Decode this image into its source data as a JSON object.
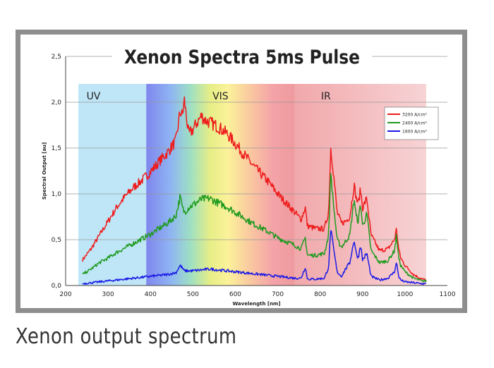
{
  "chart_data": {
    "type": "line",
    "title": "Xenon Spectra 5ms Pulse",
    "xlabel": "Wavelength [nm]",
    "ylabel": "Spectral Output [au]",
    "xlim": [
      200,
      1100
    ],
    "ylim": [
      0,
      2.5
    ],
    "x_ticks": [
      "200",
      "300",
      "400",
      "500",
      "600",
      "700",
      "800",
      "900",
      "1000",
      "1100"
    ],
    "y_ticks": [
      "0,0",
      "0,5",
      "1,0",
      "1,5",
      "2,0",
      "2,5"
    ],
    "bands": [
      {
        "label": "UV",
        "from": 230,
        "to": 390
      },
      {
        "label": "VIS",
        "from": 390,
        "to": 740
      },
      {
        "label": "IR",
        "from": 740,
        "to": 1050
      }
    ],
    "grid": true,
    "legend_position": "top-right",
    "series": [
      {
        "name": "3200 A/cm²",
        "color": "#ee1c1c",
        "points": [
          [
            240,
            0.28
          ],
          [
            260,
            0.4
          ],
          [
            280,
            0.55
          ],
          [
            300,
            0.7
          ],
          [
            320,
            0.85
          ],
          [
            340,
            0.97
          ],
          [
            360,
            1.07
          ],
          [
            380,
            1.15
          ],
          [
            400,
            1.24
          ],
          [
            420,
            1.35
          ],
          [
            440,
            1.45
          ],
          [
            460,
            1.58
          ],
          [
            470,
            1.9
          ],
          [
            475,
            1.85
          ],
          [
            480,
            2.02
          ],
          [
            490,
            1.65
          ],
          [
            500,
            1.7
          ],
          [
            510,
            1.78
          ],
          [
            520,
            1.85
          ],
          [
            530,
            1.8
          ],
          [
            540,
            1.78
          ],
          [
            560,
            1.73
          ],
          [
            580,
            1.66
          ],
          [
            600,
            1.55
          ],
          [
            620,
            1.43
          ],
          [
            640,
            1.32
          ],
          [
            660,
            1.22
          ],
          [
            680,
            1.12
          ],
          [
            700,
            1.0
          ],
          [
            720,
            0.9
          ],
          [
            740,
            0.8
          ],
          [
            755,
            0.72
          ],
          [
            765,
            0.85
          ],
          [
            770,
            0.65
          ],
          [
            790,
            0.62
          ],
          [
            810,
            0.62
          ],
          [
            820,
            0.8
          ],
          [
            825,
            1.5
          ],
          [
            830,
            1.3
          ],
          [
            840,
            0.8
          ],
          [
            850,
            0.68
          ],
          [
            860,
            0.7
          ],
          [
            870,
            0.75
          ],
          [
            880,
            1.1
          ],
          [
            885,
            0.95
          ],
          [
            890,
            0.9
          ],
          [
            895,
            1.05
          ],
          [
            900,
            0.85
          ],
          [
            910,
            0.95
          ],
          [
            920,
            0.55
          ],
          [
            940,
            0.38
          ],
          [
            960,
            0.4
          ],
          [
            975,
            0.5
          ],
          [
            980,
            0.62
          ],
          [
            985,
            0.4
          ],
          [
            990,
            0.3
          ],
          [
            1000,
            0.22
          ],
          [
            1020,
            0.12
          ],
          [
            1040,
            0.07
          ],
          [
            1050,
            0.06
          ]
        ]
      },
      {
        "name": "2400 A/cm²",
        "color": "#1f9a1f",
        "points": [
          [
            240,
            0.12
          ],
          [
            260,
            0.18
          ],
          [
            280,
            0.25
          ],
          [
            300,
            0.3
          ],
          [
            320,
            0.36
          ],
          [
            340,
            0.41
          ],
          [
            360,
            0.46
          ],
          [
            380,
            0.51
          ],
          [
            400,
            0.56
          ],
          [
            420,
            0.62
          ],
          [
            440,
            0.68
          ],
          [
            460,
            0.76
          ],
          [
            470,
            0.97
          ],
          [
            475,
            0.85
          ],
          [
            480,
            0.8
          ],
          [
            490,
            0.85
          ],
          [
            500,
            0.88
          ],
          [
            520,
            0.94
          ],
          [
            540,
            0.95
          ],
          [
            560,
            0.9
          ],
          [
            580,
            0.86
          ],
          [
            600,
            0.8
          ],
          [
            620,
            0.74
          ],
          [
            640,
            0.68
          ],
          [
            660,
            0.63
          ],
          [
            680,
            0.58
          ],
          [
            700,
            0.52
          ],
          [
            720,
            0.48
          ],
          [
            740,
            0.44
          ],
          [
            755,
            0.4
          ],
          [
            765,
            0.52
          ],
          [
            770,
            0.33
          ],
          [
            790,
            0.33
          ],
          [
            810,
            0.35
          ],
          [
            820,
            0.55
          ],
          [
            825,
            1.25
          ],
          [
            830,
            0.95
          ],
          [
            840,
            0.5
          ],
          [
            850,
            0.42
          ],
          [
            860,
            0.48
          ],
          [
            870,
            0.55
          ],
          [
            880,
            0.95
          ],
          [
            885,
            0.75
          ],
          [
            890,
            0.7
          ],
          [
            895,
            0.9
          ],
          [
            900,
            0.65
          ],
          [
            910,
            0.78
          ],
          [
            920,
            0.38
          ],
          [
            940,
            0.25
          ],
          [
            960,
            0.27
          ],
          [
            975,
            0.38
          ],
          [
            980,
            0.55
          ],
          [
            985,
            0.3
          ],
          [
            990,
            0.22
          ],
          [
            1000,
            0.15
          ],
          [
            1020,
            0.08
          ],
          [
            1040,
            0.05
          ],
          [
            1050,
            0.05
          ]
        ]
      },
      {
        "name": "1600 A/cm²",
        "color": "#1a1ae6",
        "points": [
          [
            240,
            0.02
          ],
          [
            260,
            0.03
          ],
          [
            280,
            0.04
          ],
          [
            300,
            0.05
          ],
          [
            320,
            0.06
          ],
          [
            340,
            0.07
          ],
          [
            360,
            0.08
          ],
          [
            380,
            0.09
          ],
          [
            400,
            0.1
          ],
          [
            420,
            0.11
          ],
          [
            440,
            0.12
          ],
          [
            460,
            0.14
          ],
          [
            470,
            0.22
          ],
          [
            480,
            0.16
          ],
          [
            500,
            0.16
          ],
          [
            520,
            0.17
          ],
          [
            540,
            0.18
          ],
          [
            560,
            0.17
          ],
          [
            580,
            0.16
          ],
          [
            600,
            0.15
          ],
          [
            620,
            0.14
          ],
          [
            640,
            0.13
          ],
          [
            660,
            0.12
          ],
          [
            680,
            0.11
          ],
          [
            700,
            0.1
          ],
          [
            720,
            0.09
          ],
          [
            740,
            0.08
          ],
          [
            755,
            0.08
          ],
          [
            765,
            0.2
          ],
          [
            770,
            0.07
          ],
          [
            790,
            0.07
          ],
          [
            810,
            0.08
          ],
          [
            820,
            0.2
          ],
          [
            825,
            0.62
          ],
          [
            830,
            0.45
          ],
          [
            840,
            0.15
          ],
          [
            850,
            0.1
          ],
          [
            860,
            0.18
          ],
          [
            870,
            0.25
          ],
          [
            880,
            0.5
          ],
          [
            885,
            0.35
          ],
          [
            890,
            0.3
          ],
          [
            895,
            0.45
          ],
          [
            900,
            0.28
          ],
          [
            910,
            0.35
          ],
          [
            920,
            0.1
          ],
          [
            940,
            0.06
          ],
          [
            960,
            0.08
          ],
          [
            975,
            0.15
          ],
          [
            980,
            0.25
          ],
          [
            985,
            0.1
          ],
          [
            990,
            0.06
          ],
          [
            1000,
            0.04
          ],
          [
            1020,
            0.03
          ],
          [
            1040,
            0.02
          ],
          [
            1050,
            0.02
          ]
        ]
      }
    ]
  },
  "caption": "Xenon output spectrum"
}
